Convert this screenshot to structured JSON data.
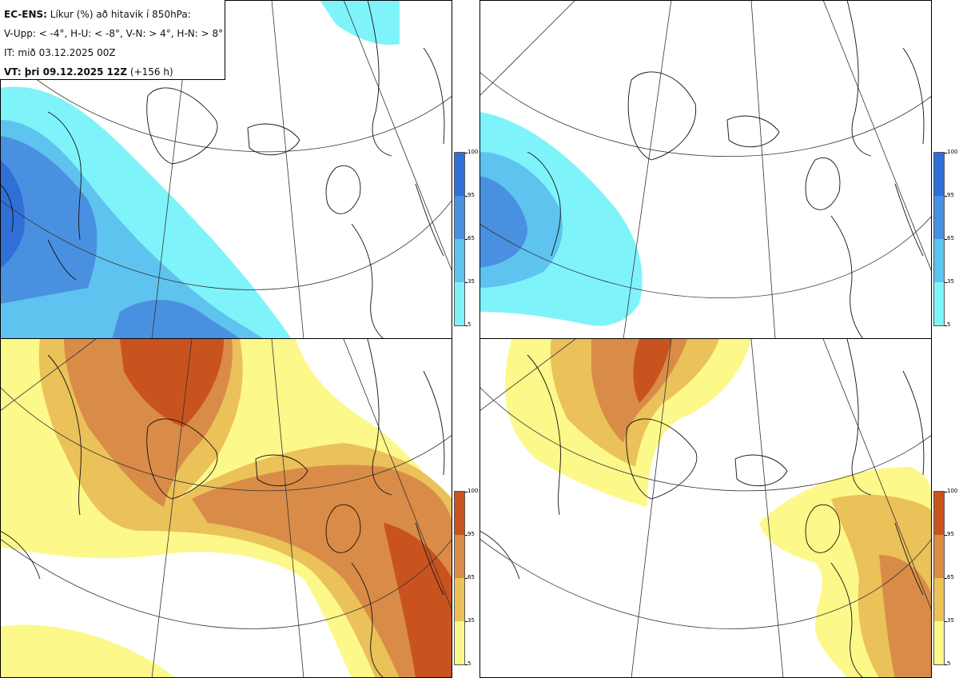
{
  "legend": {
    "line1_bold": "EC-ENS:",
    "line1_rest": "Líkur (%) að hitavik í 850hPa:",
    "line2": "V-Upp: < -4°, H-U: < -8°, V-N: > 4°, H-N: > 8°",
    "line3": "IT: mið 03.12.2025 00Z",
    "line4_bold": "VT: þri 09.12.2025 12Z",
    "line4_rest": "(+156 h)"
  },
  "colorbars": {
    "cold": {
      "ticks": [
        "100",
        "95",
        "65",
        "35",
        "5"
      ],
      "colors": [
        "#2f6fd6",
        "#4a90e0",
        "#5ec3ee",
        "#7ff3fa"
      ]
    },
    "warm": {
      "ticks": [
        "100",
        "95",
        "65",
        "35",
        "5"
      ],
      "colors": [
        "#c9531f",
        "#d98c47",
        "#ebc159",
        "#fdf88a"
      ]
    }
  },
  "panels": [
    {
      "name": "cold-lt-minus4",
      "scheme": "cold"
    },
    {
      "name": "cold-lt-minus8",
      "scheme": "cold"
    },
    {
      "name": "warm-gt-4",
      "scheme": "warm"
    },
    {
      "name": "warm-gt-8",
      "scheme": "warm"
    }
  ]
}
